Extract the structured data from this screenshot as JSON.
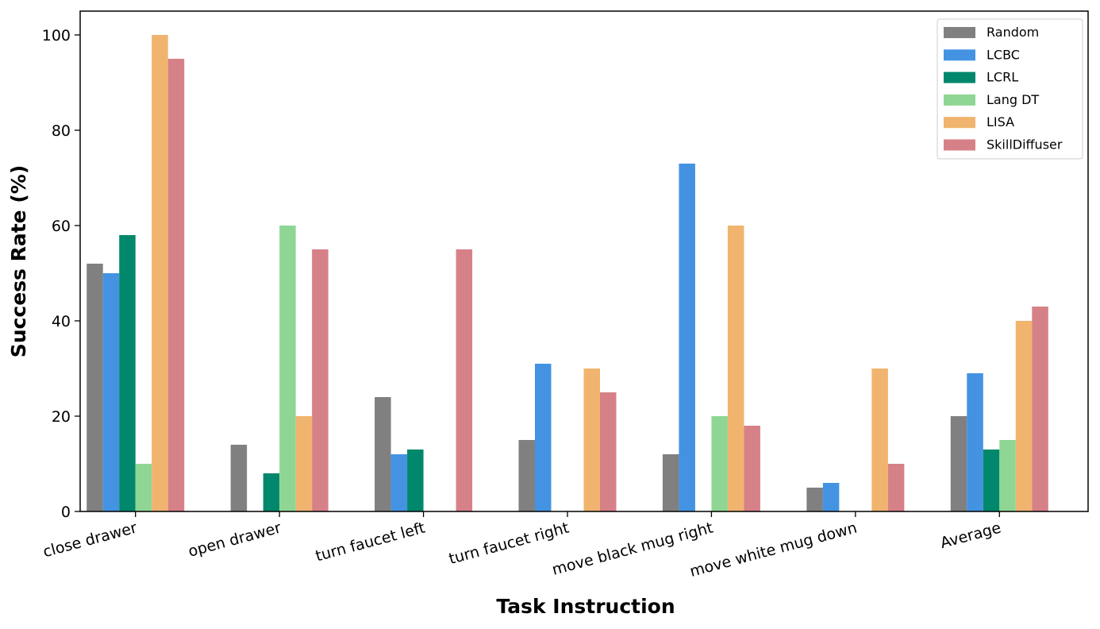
{
  "chart_data": {
    "type": "bar",
    "title": "",
    "xlabel": "Task Instruction",
    "ylabel": "Success Rate (%)",
    "ylim": [
      0,
      105
    ],
    "yticks": [
      0,
      20,
      40,
      60,
      80,
      100
    ],
    "grid": false,
    "legend_position": "top-right",
    "categories": [
      "close drawer",
      "open drawer",
      "turn faucet left",
      "turn faucet right",
      "move black mug right",
      "move white mug down",
      "Average"
    ],
    "series": [
      {
        "name": "Random",
        "color": "#808080",
        "values": [
          52,
          14,
          24,
          15,
          12,
          5,
          20
        ]
      },
      {
        "name": "LCBC",
        "color": "#4393e2",
        "values": [
          50,
          0,
          12,
          31,
          73,
          6,
          29
        ]
      },
      {
        "name": "LCRL",
        "color": "#00876c",
        "values": [
          58,
          8,
          13,
          0,
          0,
          0,
          13
        ]
      },
      {
        "name": "Lang DT",
        "color": "#8fd694",
        "values": [
          10,
          60,
          0,
          0,
          20,
          0,
          15
        ]
      },
      {
        "name": "LISA",
        "color": "#f0b46e",
        "values": [
          100,
          20,
          0,
          30,
          60,
          30,
          40
        ]
      },
      {
        "name": "SkillDiffuser",
        "color": "#d68187",
        "values": [
          95,
          55,
          55,
          25,
          18,
          10,
          43
        ]
      }
    ]
  }
}
